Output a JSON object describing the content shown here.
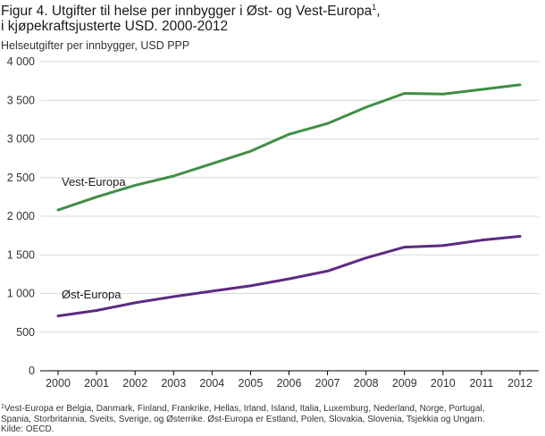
{
  "title": {
    "line1": "Figur 4. Utgifter til helse per innbygger i Øst- og Vest-Europa",
    "sup": "1",
    "line1_end": ",",
    "line2": "i kjøpekraftsjusterte USD. 2000-2012"
  },
  "footnote": {
    "sup": "1",
    "line1": "Vest-Europa er Belgia, Danmark, Finland, Frankrike, Hellas, Irland, Island, Italia, Luxemburg, Nederland, Norge, Portugal,",
    "line2": "Spania, Storbritannia, Sveits, Sverige, og Østerrike. Øst-Europa er Estland, Polen, Slovakia, Slovenia, Tsjekkia og Ungarn.",
    "line3": "Kilde: OECD."
  },
  "chart_data": {
    "type": "line",
    "title": "Figur 4. Utgifter til helse per innbygger i Øst- og Vest-Europa, i kjøpekraftsjusterte USD. 2000-2012",
    "ylabel": "Helseutgifter per innbygger, USD PPP",
    "xlabel": "",
    "ylim": [
      0,
      4000
    ],
    "yticks": [
      0,
      500,
      1000,
      1500,
      2000,
      2500,
      3000,
      3500,
      4000
    ],
    "ytick_labels": [
      "0",
      "500",
      "1 000",
      "1 500",
      "2 000",
      "2 500",
      "3 000",
      "3 500",
      "4 000"
    ],
    "x": [
      "2000",
      "2001",
      "2002",
      "2003",
      "2004",
      "2005",
      "2006",
      "2007",
      "2008",
      "2009",
      "2010",
      "2011",
      "2012"
    ],
    "grid": true,
    "series": [
      {
        "name": "Vest-Europa",
        "color": "#3f8f45",
        "values": [
          2080,
          2250,
          2400,
          2520,
          2680,
          2840,
          3060,
          3200,
          3410,
          3590,
          3580,
          3640,
          3700
        ]
      },
      {
        "name": "Øst-Europa",
        "color": "#5e2a84",
        "values": [
          710,
          780,
          880,
          960,
          1030,
          1100,
          1190,
          1290,
          1460,
          1600,
          1620,
          1690,
          1740
        ]
      }
    ]
  }
}
